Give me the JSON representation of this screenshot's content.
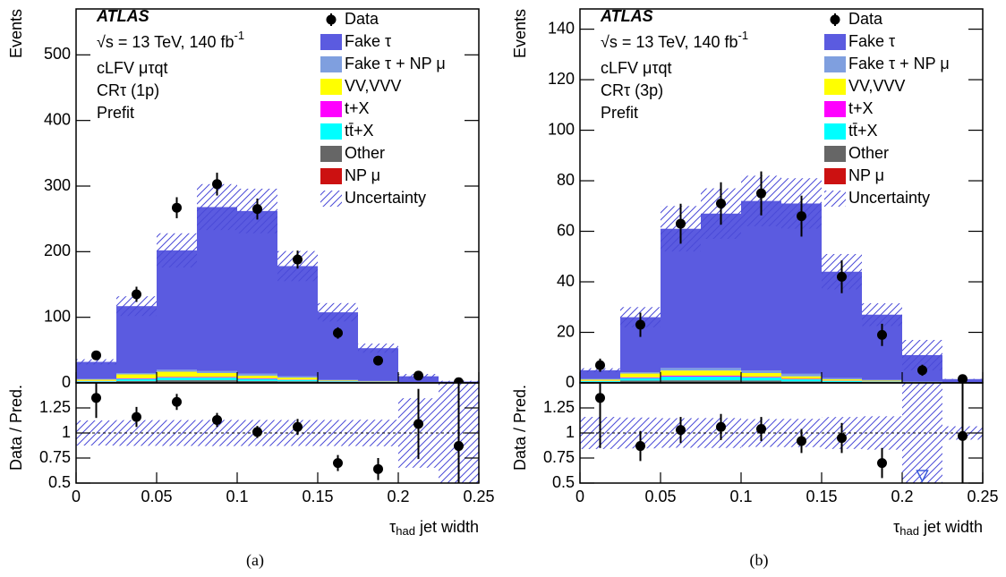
{
  "chart_data": [
    {
      "type": "histogram",
      "caption": "(a)",
      "annotations": {
        "experiment": "ATLAS",
        "lumi": [
          "√s = 13 TeV, 140 fb",
          "-1"
        ],
        "lines": [
          "cLFV μτqt",
          "CRτ (1p)",
          "Prefit"
        ]
      },
      "y_label": "Events",
      "x_label": [
        "τ",
        "had",
        " jet width"
      ],
      "bins": [
        0,
        0.025,
        0.05,
        0.075,
        0.1,
        0.125,
        0.15,
        0.175,
        0.2,
        0.225,
        0.25
      ],
      "xlim": [
        0,
        0.25
      ],
      "xticks": [
        0,
        0.05,
        0.1,
        0.15,
        0.2,
        0.25
      ],
      "ylim": [
        0,
        570
      ],
      "yticks": [
        0,
        100,
        200,
        300,
        400,
        500
      ],
      "series": [
        {
          "name": "Fake τ",
          "color": "#5b5be0",
          "values": [
            26,
            102,
            182,
            250,
            248,
            168,
            103,
            50,
            9,
            1.6
          ]
        },
        {
          "name": "Fake τ + NP μ",
          "color": "#7f9fdf",
          "values": [
            1,
            2,
            3,
            3,
            3,
            2,
            1,
            1,
            0.3,
            0.1
          ]
        },
        {
          "name": "VV,VVV",
          "color": "#ffff00",
          "values": [
            2,
            6,
            8,
            6,
            4,
            3,
            1,
            0.5,
            0.2,
            0.1
          ]
        },
        {
          "name": "t+X",
          "color": "#ff00ff",
          "values": [
            0.5,
            1,
            1,
            1,
            1,
            0.5,
            0.3,
            0.2,
            0.1,
            0
          ]
        },
        {
          "name": "tt̄+X",
          "color": "#00ffff",
          "values": [
            1,
            3,
            4,
            4,
            3,
            2,
            1,
            0.5,
            0.2,
            0.1
          ]
        },
        {
          "name": "Other",
          "color": "#666666",
          "values": [
            1,
            2,
            3,
            3,
            2,
            2,
            1,
            0.5,
            0.2,
            0.1
          ]
        },
        {
          "name": "NP μ",
          "color": "#cc1111",
          "values": [
            0.5,
            1,
            1,
            1,
            1,
            0.5,
            0.3,
            0.2,
            0.1,
            0
          ]
        }
      ],
      "data": {
        "name": "Data",
        "values": [
          42,
          135,
          267,
          303,
          265,
          188,
          76,
          34,
          11,
          1
        ],
        "errors": [
          6.5,
          11.6,
          16,
          17.4,
          16,
          13.7,
          8.7,
          5.8,
          3.3,
          1
        ]
      },
      "uncertainty": {
        "name": "Uncertainty",
        "values": [
          4,
          15,
          26,
          35,
          34,
          23,
          14,
          7,
          3.5,
          1.2
        ]
      },
      "ratio": {
        "y_label": "Data / Pred.",
        "values": [
          1.35,
          1.16,
          1.31,
          1.13,
          1.01,
          1.06,
          0.7,
          0.64,
          1.09,
          0.87
        ],
        "errors": [
          0.2,
          0.1,
          0.08,
          0.07,
          0.06,
          0.08,
          0.08,
          0.11,
          0.35,
          0.9
        ],
        "ylim": [
          0.5,
          1.5
        ],
        "yticks": [
          0.5,
          0.75,
          1,
          1.25
        ]
      }
    },
    {
      "type": "histogram",
      "caption": "(b)",
      "annotations": {
        "experiment": "ATLAS",
        "lumi": [
          "√s = 13 TeV, 140 fb",
          "-1"
        ],
        "lines": [
          "cLFV μτqt",
          "CRτ (3p)",
          "Prefit"
        ]
      },
      "y_label": "Events",
      "x_label": [
        "τ",
        "had",
        " jet width"
      ],
      "bins": [
        0,
        0.025,
        0.05,
        0.075,
        0.1,
        0.125,
        0.15,
        0.175,
        0.2,
        0.225,
        0.25
      ],
      "xlim": [
        0,
        0.25
      ],
      "xticks": [
        0,
        0.05,
        0.1,
        0.15,
        0.2,
        0.25
      ],
      "ylim": [
        0,
        148
      ],
      "yticks": [
        0,
        20,
        40,
        60,
        80,
        100,
        120,
        140
      ],
      "series": [
        {
          "name": "Fake τ",
          "color": "#5b5be0",
          "values": [
            3.4,
            21.8,
            55.1,
            61.1,
            67.1,
            67.4,
            42.1,
            25.8,
            10.5,
            1.5
          ]
        },
        {
          "name": "Fake τ + NP μ",
          "color": "#7f9fdf",
          "values": [
            0.3,
            0.5,
            1,
            1,
            1,
            1,
            0.5,
            0.3,
            0.2,
            0
          ]
        },
        {
          "name": "VV,VVV",
          "color": "#ffff00",
          "values": [
            0.5,
            1.5,
            2,
            2,
            1.5,
            1,
            0.5,
            0.3,
            0.1,
            0
          ]
        },
        {
          "name": "t+X",
          "color": "#ff00ff",
          "values": [
            0.1,
            0.3,
            0.4,
            0.4,
            0.3,
            0.2,
            0.1,
            0.1,
            0,
            0
          ]
        },
        {
          "name": "tt̄+X",
          "color": "#00ffff",
          "values": [
            0.3,
            1,
            1.5,
            1.5,
            1.2,
            0.8,
            0.4,
            0.2,
            0.1,
            0
          ]
        },
        {
          "name": "Other",
          "color": "#666666",
          "values": [
            0.3,
            0.7,
            0.8,
            0.8,
            0.7,
            0.5,
            0.3,
            0.2,
            0.1,
            0
          ]
        },
        {
          "name": "NP μ",
          "color": "#cc1111",
          "values": [
            0.1,
            0.2,
            0.2,
            0.2,
            0.2,
            0.1,
            0.1,
            0.1,
            0,
            0
          ]
        }
      ],
      "data": {
        "name": "Data",
        "values": [
          7,
          23,
          63,
          71,
          75,
          66,
          42,
          19,
          5,
          1.5
        ],
        "errors": [
          2.6,
          4.8,
          7.9,
          8.4,
          8.7,
          8.1,
          6.5,
          4.4,
          2.2,
          1.2
        ]
      },
      "uncertainty": {
        "name": "Uncertainty",
        "values": [
          0.8,
          4,
          9,
          10,
          10,
          10,
          7,
          4.5,
          6,
          0.1
        ]
      },
      "ratio": {
        "y_label": "Data / Pred.",
        "values": [
          1.35,
          0.87,
          1.03,
          1.06,
          1.04,
          0.92,
          0.95,
          0.7,
          0.45,
          0.97
        ],
        "errors": [
          0.5,
          0.15,
          0.13,
          0.13,
          0.12,
          0.12,
          0.15,
          0.15,
          0.2,
          1
        ],
        "ylim": [
          0.5,
          1.5
        ],
        "yticks": [
          0.5,
          0.75,
          1,
          1.25
        ]
      }
    }
  ]
}
